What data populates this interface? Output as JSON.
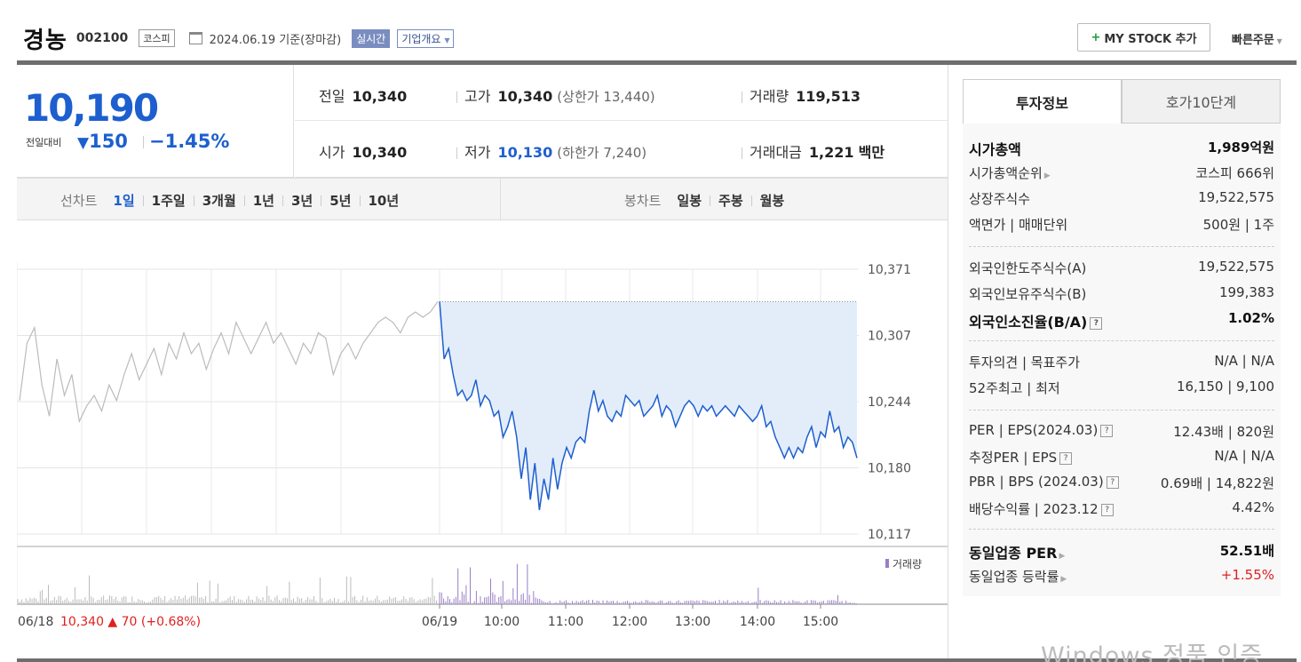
{
  "header": {
    "stock_name": "경농",
    "stock_code": "002100",
    "market": "코스피",
    "date_label": "2024.06.19 기준(장마감)",
    "realtime_label": "실시간",
    "company_label": "기업개요",
    "mystock_label": "MY STOCK 추가",
    "quick_order_label": "빠른주문"
  },
  "price": {
    "current": "10,190",
    "change_label": "전일대비",
    "change_value": "150",
    "change_pct": "−1.45%"
  },
  "info": {
    "prev_label": "전일",
    "prev_value": "10,340",
    "high_label": "고가",
    "high_value": "10,340",
    "upper_limit": "(상한가 13,440)",
    "volume_label": "거래량",
    "volume_value": "119,513",
    "open_label": "시가",
    "open_value": "10,340",
    "low_label": "저가",
    "low_value": "10,130",
    "lower_limit": "(하한가 7,240)",
    "amount_label": "거래대금",
    "amount_value": "1,221",
    "amount_unit": "백만"
  },
  "periods": {
    "line_label": "선차트",
    "line_tabs": [
      "1일",
      "1주일",
      "3개월",
      "1년",
      "3년",
      "5년",
      "10년"
    ],
    "candle_label": "봉차트",
    "candle_tabs": [
      "일봉",
      "주봉",
      "월봉"
    ]
  },
  "chart_data": {
    "type": "line",
    "yticks": [
      "10,371",
      "10,307",
      "10,244",
      "10,180",
      "10,117"
    ],
    "ylim": [
      10117,
      10371
    ],
    "xticks": [
      "06/19",
      "10:00",
      "11:00",
      "12:00",
      "13:00",
      "14:00",
      "15:00"
    ],
    "prev_day_label": "06/18",
    "prev_day_info": "10,340 ▲ 70 (+0.68%)",
    "volume_legend": "거래량",
    "series": [
      {
        "name": "06/18",
        "values": [
          10245,
          10300,
          10315,
          10260,
          10230,
          10285,
          10250,
          10270,
          10225,
          10240,
          10250,
          10235,
          10260,
          10245,
          10270,
          10290,
          10265,
          10280,
          10295,
          10270,
          10300,
          10285,
          10310,
          10290,
          10300,
          10275,
          10295,
          10310,
          10290,
          10320,
          10305,
          10290,
          10305,
          10320,
          10300,
          10310,
          10295,
          10280,
          10300,
          10290,
          10310,
          10305,
          10270,
          10290,
          10300,
          10285,
          10300,
          10310,
          10320,
          10325,
          10320,
          10310,
          10325,
          10330,
          10325,
          10330,
          10340
        ]
      },
      {
        "name": "06/19",
        "values": [
          10340,
          10285,
          10295,
          10270,
          10250,
          10255,
          10245,
          10250,
          10265,
          10240,
          10250,
          10245,
          10230,
          10235,
          10210,
          10220,
          10235,
          10210,
          10170,
          10200,
          10150,
          10185,
          10140,
          10170,
          10150,
          10190,
          10160,
          10185,
          10200,
          10190,
          10205,
          10210,
          10205,
          10235,
          10255,
          10235,
          10245,
          10230,
          10225,
          10235,
          10230,
          10250,
          10245,
          10240,
          10245,
          10230,
          10235,
          10240,
          10250,
          10230,
          10240,
          10235,
          10220,
          10230,
          10240,
          10245,
          10240,
          10230,
          10240,
          10235,
          10240,
          10230,
          10235,
          10240,
          10235,
          10230,
          10240,
          10235,
          10230,
          10225,
          10230,
          10240,
          10220,
          10225,
          10210,
          10200,
          10190,
          10200,
          10190,
          10200,
          10195,
          10210,
          10220,
          10200,
          10215,
          10210,
          10235,
          10215,
          10220,
          10200,
          10210,
          10205,
          10190
        ]
      }
    ],
    "prev_close": 10340
  },
  "right": {
    "tab_active": "투자정보",
    "tab_other": "호가10단계",
    "s1": [
      {
        "k": "시가총액",
        "v": "1,989억원"
      },
      {
        "k": "시가총액순위",
        "v": "코스피 666위"
      },
      {
        "k": "상장주식수",
        "v": "19,522,575"
      },
      {
        "k": "액면가 | 매매단위",
        "v": "500원 | 1주"
      }
    ],
    "s2": [
      {
        "k": "외국인한도주식수(A)",
        "v": "19,522,575"
      },
      {
        "k": "외국인보유주식수(B)",
        "v": "199,383"
      },
      {
        "k": "외국인소진율(B/A)",
        "v": "1.02%"
      }
    ],
    "s3": [
      {
        "k": "투자의견 | 목표주가",
        "v": "N/A | N/A"
      },
      {
        "k": "52주최고 | 최저",
        "v": "16,150 | 9,100"
      }
    ],
    "s4": [
      {
        "k": "PER | EPS(2024.03)",
        "v": "12.43배 | 820원"
      },
      {
        "k": "추정PER | EPS",
        "v": "N/A | N/A"
      },
      {
        "k": "PBR | BPS (2024.03)",
        "v": "0.69배 | 14,822원"
      },
      {
        "k": "배당수익률 | 2023.12",
        "v": "4.42%"
      }
    ],
    "s5": [
      {
        "k": "동일업종 PER",
        "v": "52.51배"
      },
      {
        "k": "동일업종 등락률",
        "v": "+1.55%"
      }
    ]
  },
  "watermark": "Windows 정품 인증",
  "colors": {
    "blue": "#1d5fcf",
    "red": "#e02020",
    "fill": "#e3edfa",
    "prev_line": "#bbbbbb",
    "vol_old": "#bbbbbb",
    "vol_new": "#9a7fc4"
  }
}
